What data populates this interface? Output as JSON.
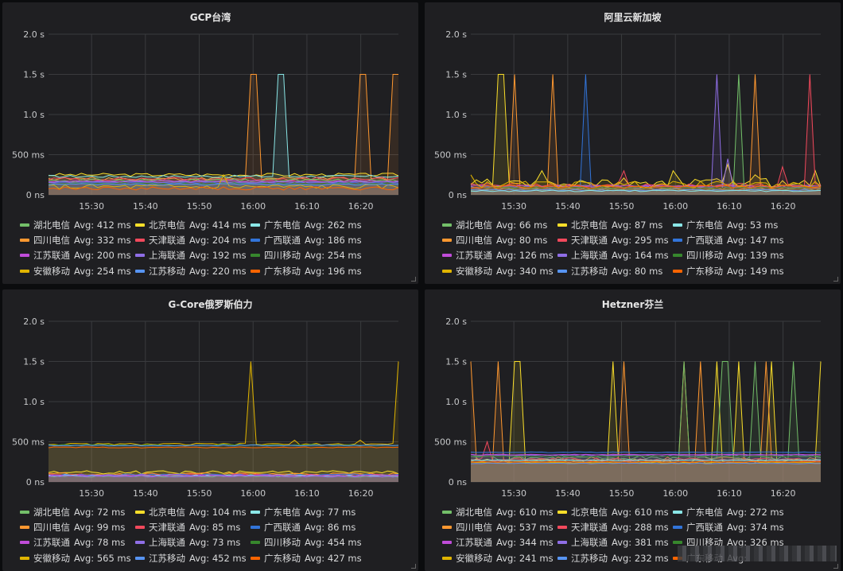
{
  "colors": {
    "湖北电信": "#73bf69",
    "北京电信": "#fade2a",
    "广东电信": "#8ae6e6",
    "四川电信": "#ff9830",
    "天津联通": "#f2495c",
    "广西联通": "#3274d9",
    "江苏联通": "#c04cd9",
    "上海联通": "#8f6ee6",
    "四川移动": "#37872d",
    "安徽移动": "#e0b400",
    "江苏移动": "#5794f2",
    "广东移动": "#fa6400"
  },
  "chart_data": [
    {
      "title": "GCP台湾",
      "type": "line",
      "x_ticks": [
        "15:30",
        "15:40",
        "15:50",
        "16:00",
        "16:10",
        "16:20"
      ],
      "y_ticks": [
        "0 ns",
        "500 ms",
        "1.0 s",
        "1.5 s",
        "2.0 s"
      ],
      "ylim": [
        0,
        2.0
      ],
      "legend": [
        {
          "name": "湖北电信",
          "avg": "Avg: 412 ms"
        },
        {
          "name": "北京电信",
          "avg": "Avg: 414 ms"
        },
        {
          "name": "广东电信",
          "avg": "Avg: 262 ms"
        },
        {
          "name": "四川电信",
          "avg": "Avg: 332 ms"
        },
        {
          "name": "天津联通",
          "avg": "Avg: 204 ms"
        },
        {
          "name": "广西联通",
          "avg": "Avg: 186 ms"
        },
        {
          "name": "江苏联通",
          "avg": "Avg: 200 ms"
        },
        {
          "name": "上海联通",
          "avg": "Avg: 192 ms"
        },
        {
          "name": "四川移动",
          "avg": "Avg: 254 ms"
        },
        {
          "name": "安徽移动",
          "avg": "Avg: 254 ms"
        },
        {
          "name": "江苏移动",
          "avg": "Avg: 220 ms"
        },
        {
          "name": "广东移动",
          "avg": "Avg: 196 ms"
        }
      ],
      "series": [
        {
          "name": "北京电信",
          "base": 0.25,
          "noise": 0.02,
          "spikes": [
            [
              16.3,
              0.28
            ],
            [
              16.63,
              0.29
            ]
          ]
        },
        {
          "name": "四川电信",
          "base": 0.2,
          "noise": 0.02,
          "spikes": [
            [
              15.86,
              1.5,
              "t"
            ],
            [
              16.0,
              1.5,
              "t"
            ],
            [
              16.2,
              1.5,
              "t"
            ],
            [
              16.38,
              1.5,
              "t"
            ]
          ]
        },
        {
          "name": "广东电信",
          "base": 0.23,
          "noise": 0.015,
          "spikes": [
            [
              15.9,
              1.5,
              "t"
            ],
            [
              16.05,
              1.5,
              "t"
            ],
            [
              16.28,
              1.5,
              "t"
            ],
            [
              16.45,
              1.5,
              "t"
            ]
          ]
        },
        {
          "name": "天津联通",
          "base": 0.2,
          "noise": 0.02,
          "spikes": [
            [
              16.53,
              0.6
            ]
          ]
        },
        {
          "name": "湖北电信",
          "base": 0.18,
          "noise": 0.02,
          "spikes": [
            [
              15.96,
              1.5
            ],
            [
              16.37,
              1.4
            ]
          ]
        },
        {
          "name": "广西联通",
          "base": 0.15,
          "noise": 0.01,
          "spikes": []
        },
        {
          "name": "江苏联通",
          "base": 0.17,
          "noise": 0.01,
          "spikes": []
        },
        {
          "name": "上海联通",
          "base": 0.16,
          "noise": 0.01,
          "spikes": []
        },
        {
          "name": "四川移动",
          "base": 0.14,
          "noise": 0.015,
          "spikes": []
        },
        {
          "name": "安徽移动",
          "base": 0.1,
          "noise": 0.03,
          "spikes": [
            [
              15.55,
              0.25
            ]
          ]
        },
        {
          "name": "江苏移动",
          "base": 0.13,
          "noise": 0.01,
          "spikes": []
        },
        {
          "name": "广东移动",
          "base": 0.08,
          "noise": 0.02,
          "spikes": []
        }
      ]
    },
    {
      "title": "阿里云新加坡",
      "type": "line",
      "x_ticks": [
        "15:30",
        "15:40",
        "15:50",
        "16:00",
        "16:10",
        "16:20"
      ],
      "y_ticks": [
        "0 ns",
        "500 ms",
        "1.0 s",
        "1.5 s",
        "2.0 s"
      ],
      "ylim": [
        0,
        2.0
      ],
      "legend": [
        {
          "name": "湖北电信",
          "avg": "Avg: 66 ms"
        },
        {
          "name": "北京电信",
          "avg": "Avg: 87 ms"
        },
        {
          "name": "广东电信",
          "avg": "Avg: 53 ms"
        },
        {
          "name": "四川电信",
          "avg": "Avg: 80 ms"
        },
        {
          "name": "天津联通",
          "avg": "Avg: 295 ms"
        },
        {
          "name": "广西联通",
          "avg": "Avg: 147 ms"
        },
        {
          "name": "江苏联通",
          "avg": "Avg: 126 ms"
        },
        {
          "name": "上海联通",
          "avg": "Avg: 164 ms"
        },
        {
          "name": "四川移动",
          "avg": "Avg: 139 ms"
        },
        {
          "name": "安徽移动",
          "avg": "Avg: 340 ms"
        },
        {
          "name": "江苏移动",
          "avg": "Avg: 80 ms"
        },
        {
          "name": "广东移动",
          "avg": "Avg: 149 ms"
        }
      ],
      "series": [
        {
          "name": "北京电信",
          "base": 0.15,
          "noise": 0.06,
          "spikes": [
            [
              15.27,
              1.5,
              "t"
            ],
            [
              15.35,
              0.3
            ],
            [
              15.6,
              0.3
            ],
            [
              15.75,
              0.25
            ],
            [
              16.1,
              0.38
            ],
            [
              16.26,
              0.3
            ],
            [
              16.35,
              1.0
            ]
          ]
        },
        {
          "name": "四川电信",
          "base": 0.08,
          "noise": 0.02,
          "spikes": [
            [
              15.3,
              1.5
            ],
            [
              15.37,
              1.5
            ],
            [
              16.15,
              1.5
            ]
          ]
        },
        {
          "name": "天津联通",
          "base": 0.12,
          "noise": 0.03,
          "spikes": [
            [
              15.5,
              0.3
            ],
            [
              15.8,
              0.35
            ],
            [
              16.25,
              1.5
            ],
            [
              16.33,
              1.5
            ]
          ]
        },
        {
          "name": "湖北电信",
          "base": 0.07,
          "noise": 0.02,
          "spikes": [
            [
              16.12,
              1.5
            ]
          ]
        },
        {
          "name": "广西联通",
          "base": 0.1,
          "noise": 0.01,
          "spikes": [
            [
              15.43,
              1.5
            ]
          ]
        },
        {
          "name": "上海联通",
          "base": 0.1,
          "noise": 0.02,
          "spikes": [
            [
              15.68,
              1.5
            ],
            [
              15.7,
              0.45
            ]
          ]
        },
        {
          "name": "江苏联通",
          "base": 0.11,
          "noise": 0.01,
          "spikes": []
        },
        {
          "name": "四川移动",
          "base": 0.09,
          "noise": 0.01,
          "spikes": []
        },
        {
          "name": "安徽移动",
          "base": 0.13,
          "noise": 0.04,
          "spikes": [
            [
              15.22,
              0.25
            ]
          ]
        },
        {
          "name": "江苏移动",
          "base": 0.06,
          "noise": 0.01,
          "spikes": []
        },
        {
          "name": "广东移动",
          "base": 0.1,
          "noise": 0.02,
          "spikes": []
        },
        {
          "name": "广东电信",
          "base": 0.05,
          "noise": 0.01,
          "spikes": []
        }
      ]
    },
    {
      "title": "G-Core俄罗斯伯力",
      "type": "line",
      "x_ticks": [
        "15:30",
        "15:40",
        "15:50",
        "16:00",
        "16:10",
        "16:20"
      ],
      "y_ticks": [
        "0 ns",
        "500 ms",
        "1.0 s",
        "1.5 s",
        "2.0 s"
      ],
      "ylim": [
        0,
        2.0
      ],
      "legend": [
        {
          "name": "湖北电信",
          "avg": "Avg: 72 ms"
        },
        {
          "name": "北京电信",
          "avg": "Avg: 104 ms"
        },
        {
          "name": "广东电信",
          "avg": "Avg: 77 ms"
        },
        {
          "name": "四川电信",
          "avg": "Avg: 99 ms"
        },
        {
          "name": "天津联通",
          "avg": "Avg: 85 ms"
        },
        {
          "name": "广西联通",
          "avg": "Avg: 86 ms"
        },
        {
          "name": "江苏联通",
          "avg": "Avg: 78 ms"
        },
        {
          "name": "上海联通",
          "avg": "Avg: 73 ms"
        },
        {
          "name": "四川移动",
          "avg": "Avg: 454 ms"
        },
        {
          "name": "安徽移动",
          "avg": "Avg: 565 ms"
        },
        {
          "name": "江苏移动",
          "avg": "Avg: 452 ms"
        },
        {
          "name": "广东移动",
          "avg": "Avg: 427 ms"
        }
      ],
      "series": [
        {
          "name": "安徽移动",
          "base": 0.47,
          "noise": 0.012,
          "spikes": [
            [
              15.98,
              0.5
            ],
            [
              16.0,
              1.5
            ],
            [
              16.08,
              0.52
            ],
            [
              16.2,
              0.52
            ],
            [
              16.27,
              1.5
            ],
            [
              16.33,
              0.55
            ],
            [
              16.4,
              1.5
            ]
          ]
        },
        {
          "name": "四川移动",
          "base": 0.46,
          "noise": 0.008,
          "spikes": []
        },
        {
          "name": "江苏移动",
          "base": 0.455,
          "noise": 0.006,
          "spikes": []
        },
        {
          "name": "广东移动",
          "base": 0.43,
          "noise": 0.006,
          "spikes": []
        },
        {
          "name": "北京电信",
          "base": 0.12,
          "noise": 0.02,
          "spikes": []
        },
        {
          "name": "四川电信",
          "base": 0.1,
          "noise": 0.015,
          "spikes": [
            [
              16.38,
              0.18
            ]
          ]
        },
        {
          "name": "天津联通",
          "base": 0.09,
          "noise": 0.01,
          "spikes": []
        },
        {
          "name": "广西联通",
          "base": 0.09,
          "noise": 0.01,
          "spikes": []
        },
        {
          "name": "湖北电信",
          "base": 0.07,
          "noise": 0.01,
          "spikes": []
        },
        {
          "name": "广东电信",
          "base": 0.08,
          "noise": 0.01,
          "spikes": []
        },
        {
          "name": "江苏联通",
          "base": 0.08,
          "noise": 0.01,
          "spikes": []
        },
        {
          "name": "上海联通",
          "base": 0.07,
          "noise": 0.01,
          "spikes": []
        }
      ]
    },
    {
      "title": "Hetzner芬兰",
      "type": "line",
      "x_ticks": [
        "15:30",
        "15:40",
        "15:50",
        "16:00",
        "16:10",
        "16:20"
      ],
      "y_ticks": [
        "0 ns",
        "500 ms",
        "1.0 s",
        "1.5 s",
        "2.0 s"
      ],
      "ylim": [
        0,
        2.0
      ],
      "legend": [
        {
          "name": "湖北电信",
          "avg": "Avg: 610 ms"
        },
        {
          "name": "北京电信",
          "avg": "Avg: 610 ms"
        },
        {
          "name": "广东电信",
          "avg": "Avg: 272 ms"
        },
        {
          "name": "四川电信",
          "avg": "Avg: 537 ms"
        },
        {
          "name": "天津联通",
          "avg": "Avg: 288 ms"
        },
        {
          "name": "广西联通",
          "avg": "Avg: 374 ms"
        },
        {
          "name": "江苏联通",
          "avg": "Avg: 344 ms"
        },
        {
          "name": "上海联通",
          "avg": "Avg: 381 ms"
        },
        {
          "name": "四川移动",
          "avg": "Avg: 326 ms"
        },
        {
          "name": "安徽移动",
          "avg": "Avg: 241 ms"
        },
        {
          "name": "江苏移动",
          "avg": "Avg: 232 ms"
        },
        {
          "name": "广东移动",
          "avg": "Avg: "
        }
      ],
      "series": [
        {
          "name": "北京电信",
          "base": 0.26,
          "noise": 0.03,
          "spikes": [
            [
              15.3,
              1.5,
              "t"
            ],
            [
              15.48,
              1.5
            ],
            [
              16.08,
              1.5
            ],
            [
              16.12,
              1.5
            ],
            [
              16.18,
              1.5
            ],
            [
              16.27,
              1.5
            ],
            [
              16.33,
              1.5
            ]
          ]
        },
        {
          "name": "四川电信",
          "base": 0.28,
          "noise": 0.03,
          "spikes": [
            [
              15.22,
              1.5
            ],
            [
              15.27,
              1.5
            ],
            [
              15.5,
              1.5
            ],
            [
              15.62,
              1.5
            ],
            [
              15.65,
              1.5
            ],
            [
              15.77,
              1.5
            ]
          ]
        },
        {
          "name": "湖北电信",
          "base": 0.3,
          "noise": 0.03,
          "spikes": [
            [
              15.69,
              1.5,
              "t"
            ],
            [
              15.95,
              1.5
            ],
            [
              16.02,
              1.5
            ],
            [
              16.15,
              1.5
            ],
            [
              16.22,
              1.5
            ],
            [
              16.28,
              1.5
            ]
          ]
        },
        {
          "name": "上海联通",
          "base": 0.33,
          "noise": 0.01,
          "spikes": [
            [
              16.3,
              1.5
            ],
            [
              16.45,
              1.5
            ]
          ]
        },
        {
          "name": "天津联通",
          "base": 0.28,
          "noise": 0.02,
          "spikes": [
            [
              15.25,
              0.5
            ]
          ]
        },
        {
          "name": "广西联通",
          "base": 0.37,
          "noise": 0.005,
          "spikes": []
        },
        {
          "name": "江苏联通",
          "base": 0.34,
          "noise": 0.005,
          "spikes": []
        },
        {
          "name": "四川移动",
          "base": 0.32,
          "noise": 0.005,
          "spikes": []
        },
        {
          "name": "广东电信",
          "base": 0.27,
          "noise": 0.005,
          "spikes": []
        },
        {
          "name": "安徽移动",
          "base": 0.24,
          "noise": 0.01,
          "spikes": []
        },
        {
          "name": "江苏移动",
          "base": 0.23,
          "noise": 0.005,
          "spikes": []
        },
        {
          "name": "广东移动",
          "base": 0.25,
          "noise": 0.005,
          "spikes": []
        }
      ]
    }
  ]
}
